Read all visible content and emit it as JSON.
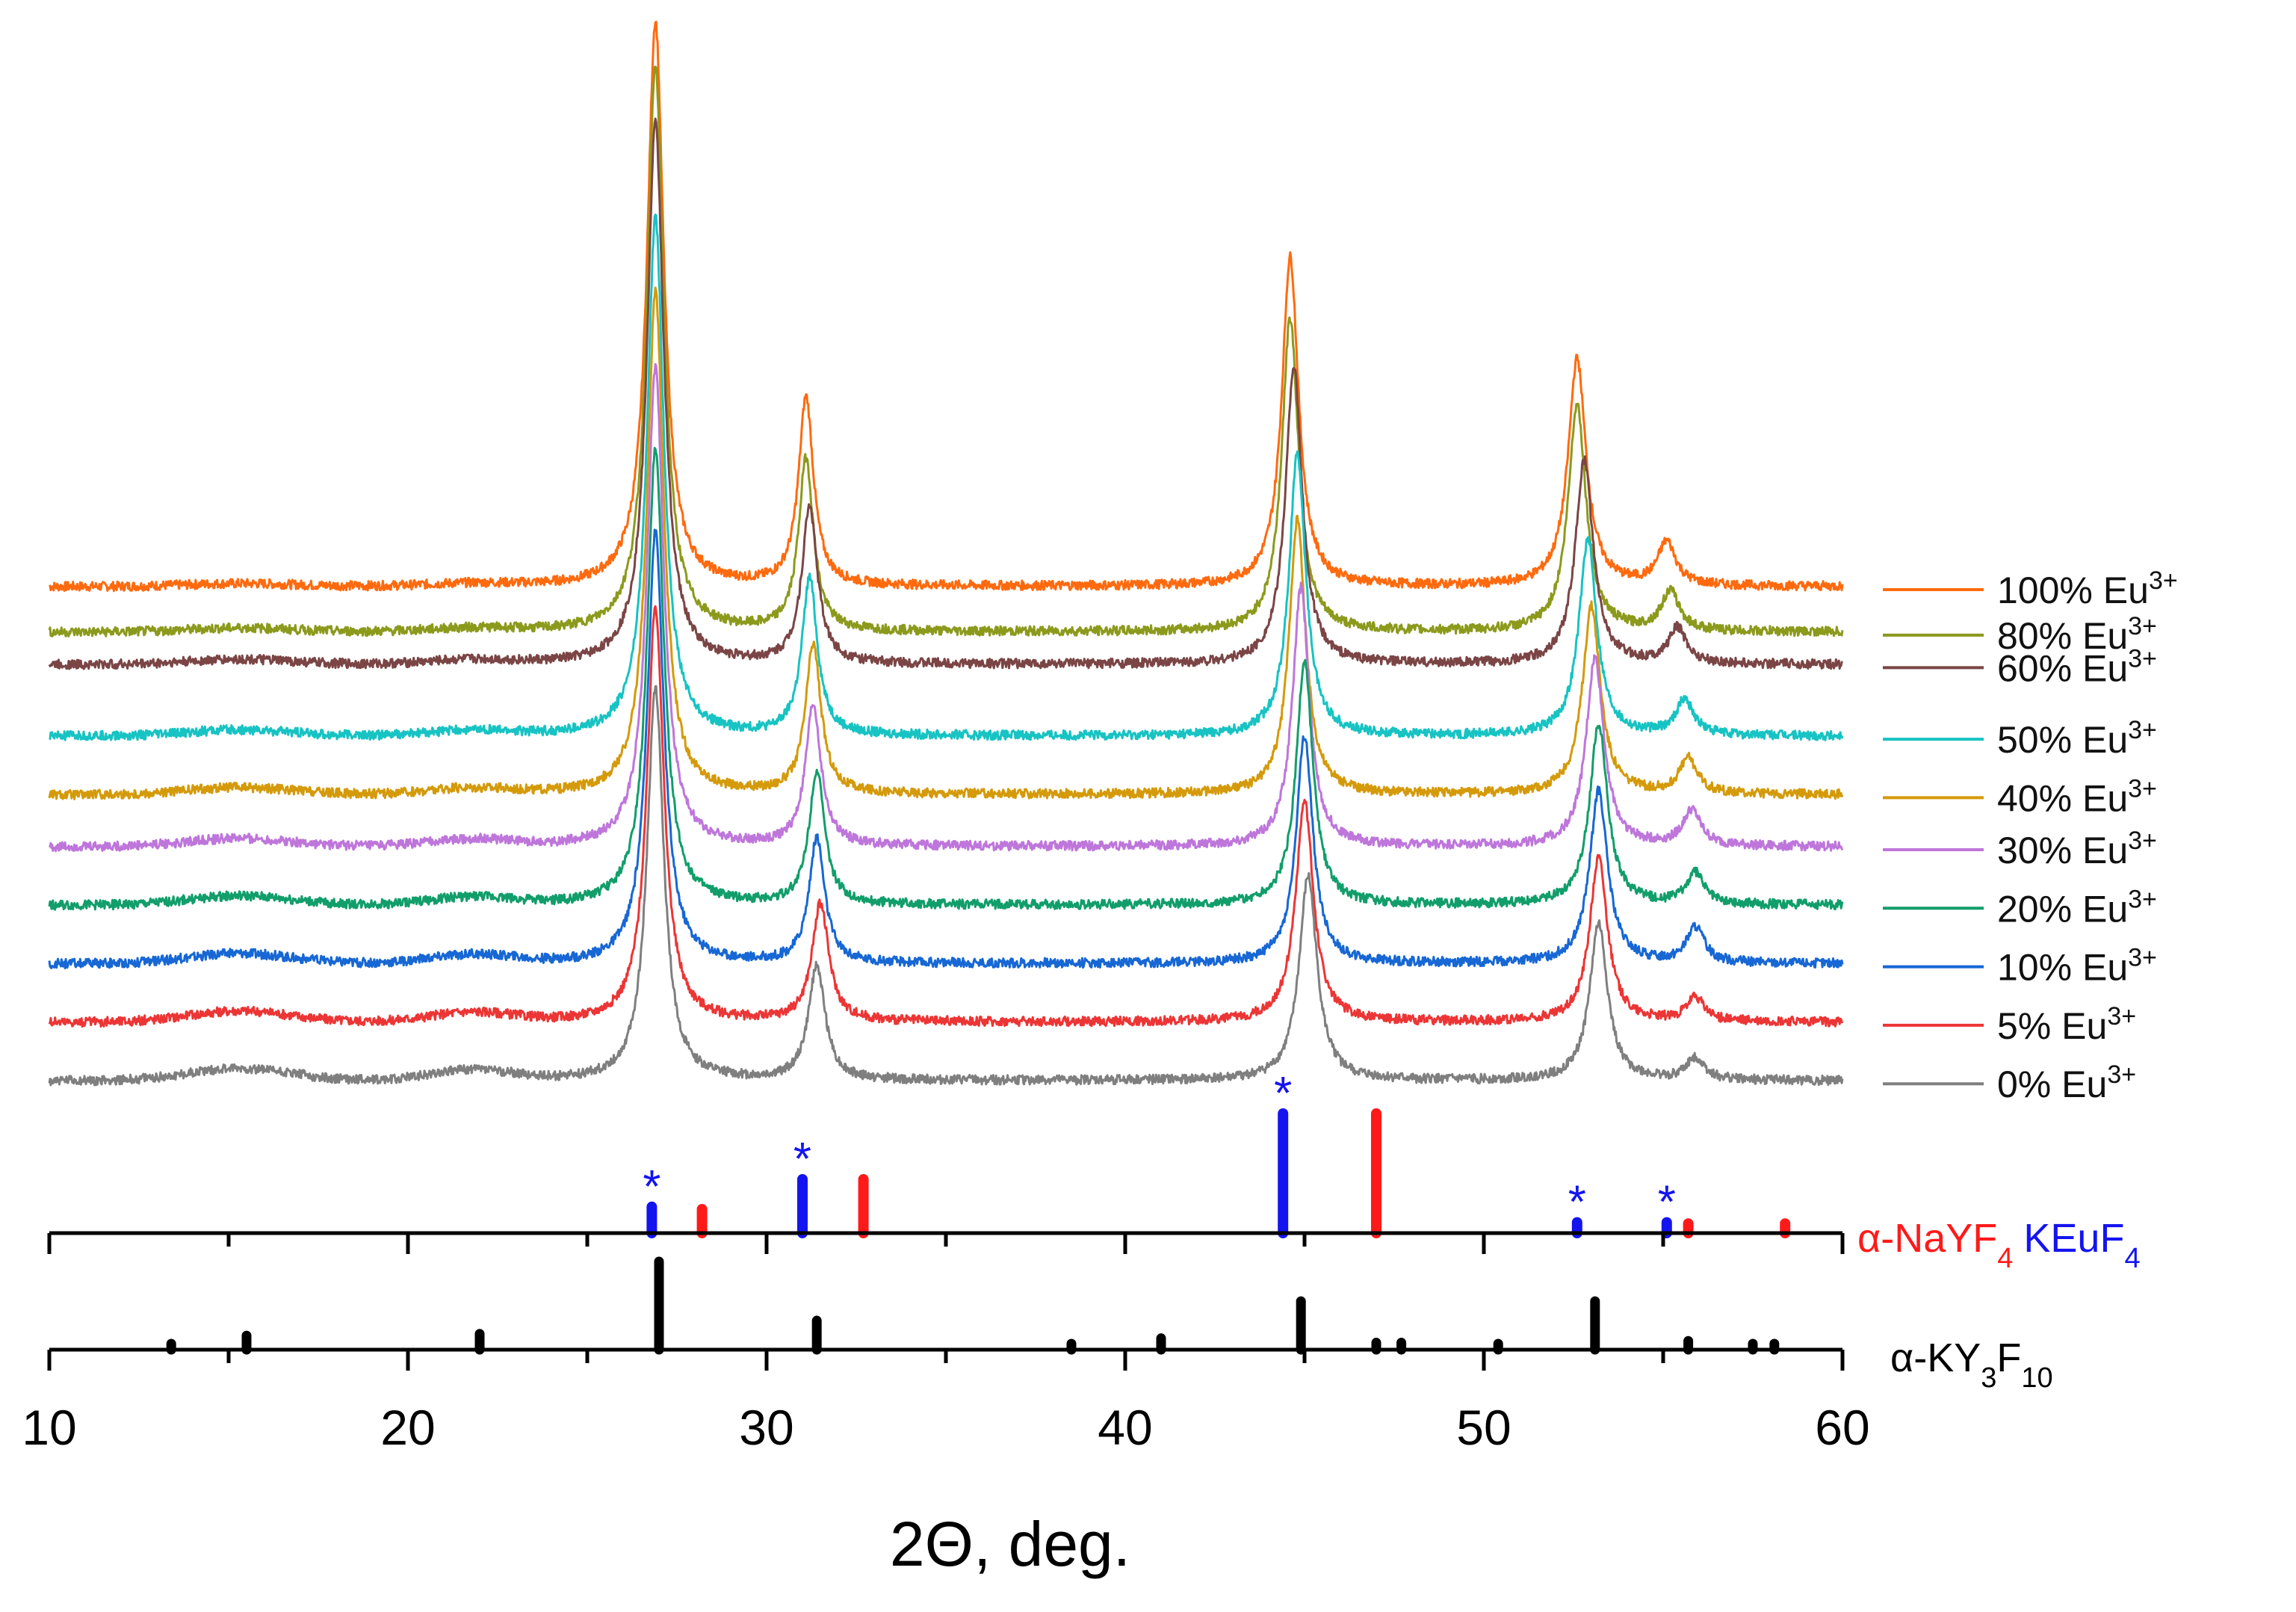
{
  "chart_data": {
    "type": "line",
    "title": "",
    "xlabel": "2Θ, deg.",
    "ylabel": "",
    "xlim": [
      10,
      60
    ],
    "x_ticks": [
      "10",
      "20",
      "30",
      "40",
      "50",
      "60"
    ],
    "grid": false,
    "legend_position": "right",
    "series": [
      {
        "name": "100% Eu",
        "sup": "3+",
        "color": "#FF6A0E",
        "baseline": 0.0,
        "peaks": [
          [
            26.9,
            7.2,
            0.28
          ],
          [
            31.1,
            2.4,
            0.25
          ],
          [
            44.6,
            4.2,
            0.28
          ],
          [
            52.6,
            2.9,
            0.3
          ],
          [
            55.1,
            0.55,
            0.3
          ]
        ]
      },
      {
        "name": "80% Eu",
        "sup": "3+",
        "color": "#8C9A1C",
        "baseline": 0.35,
        "peaks": [
          [
            26.9,
            7.2,
            0.28
          ],
          [
            31.1,
            2.2,
            0.25
          ],
          [
            44.6,
            4.0,
            0.28
          ],
          [
            52.6,
            2.9,
            0.3
          ],
          [
            55.2,
            0.5,
            0.3
          ]
        ]
      },
      {
        "name": "60% Eu",
        "sup": "3+",
        "color": "#7B4545",
        "baseline": 0.6,
        "peaks": [
          [
            26.9,
            6.9,
            0.28
          ],
          [
            31.2,
            2.0,
            0.26
          ],
          [
            44.7,
            3.8,
            0.28
          ],
          [
            52.8,
            2.6,
            0.3
          ],
          [
            55.4,
            0.45,
            0.3
          ]
        ]
      },
      {
        "name": "50% Eu",
        "sup": "3+",
        "color": "#17C3C3",
        "baseline": 1.15,
        "peaks": [
          [
            26.9,
            6.6,
            0.28
          ],
          [
            31.2,
            2.0,
            0.26
          ],
          [
            44.8,
            3.6,
            0.28
          ],
          [
            52.9,
            2.5,
            0.3
          ],
          [
            55.6,
            0.45,
            0.3
          ]
        ]
      },
      {
        "name": "40% Eu",
        "sup": "3+",
        "color": "#D49A0A",
        "baseline": 1.6,
        "peaks": [
          [
            26.9,
            6.4,
            0.28
          ],
          [
            31.3,
            1.9,
            0.26
          ],
          [
            44.8,
            3.5,
            0.28
          ],
          [
            53.0,
            2.4,
            0.3
          ],
          [
            55.7,
            0.45,
            0.3
          ]
        ]
      },
      {
        "name": "30% Eu",
        "sup": "3+",
        "color": "#BE76DB",
        "baseline": 2.0,
        "peaks": [
          [
            26.9,
            6.1,
            0.28
          ],
          [
            31.3,
            1.8,
            0.26
          ],
          [
            44.9,
            3.3,
            0.28
          ],
          [
            53.1,
            2.4,
            0.3
          ],
          [
            55.8,
            0.45,
            0.3
          ]
        ]
      },
      {
        "name": "20% Eu",
        "sup": "3+",
        "color": "#119E6A",
        "baseline": 2.45,
        "peaks": [
          [
            26.9,
            5.8,
            0.28
          ],
          [
            31.4,
            1.7,
            0.26
          ],
          [
            45.0,
            3.1,
            0.28
          ],
          [
            53.2,
            2.3,
            0.3
          ],
          [
            55.9,
            0.4,
            0.3
          ]
        ]
      },
      {
        "name": "10% Eu",
        "sup": "3+",
        "color": "#1767D4",
        "baseline": 2.9,
        "peaks": [
          [
            26.9,
            5.5,
            0.28
          ],
          [
            31.4,
            1.6,
            0.26
          ],
          [
            45.0,
            2.9,
            0.28
          ],
          [
            53.2,
            2.2,
            0.3
          ],
          [
            55.9,
            0.45,
            0.3
          ]
        ]
      },
      {
        "name": "5% Eu",
        "sup": "3+",
        "color": "#EC3535",
        "baseline": 3.35,
        "peaks": [
          [
            26.9,
            5.3,
            0.28
          ],
          [
            31.5,
            1.5,
            0.28
          ],
          [
            45.0,
            2.8,
            0.3
          ],
          [
            53.2,
            2.1,
            0.3
          ],
          [
            55.9,
            0.3,
            0.3
          ]
        ]
      },
      {
        "name": "0% Eu",
        "sup": "3+",
        "color": "#7F7F7F",
        "baseline": 3.8,
        "peaks": [
          [
            26.9,
            5.0,
            0.28
          ],
          [
            31.4,
            1.45,
            0.28
          ],
          [
            45.1,
            2.6,
            0.3
          ],
          [
            53.2,
            2.0,
            0.3
          ],
          [
            55.9,
            0.28,
            0.3
          ]
        ]
      }
    ],
    "reference_patterns": [
      {
        "name": "α-NaYF",
        "sub": "4",
        "color": "#FF1A1A",
        "panel": "upper",
        "sticks": [
          [
            28.2,
            0.2
          ],
          [
            32.7,
            0.45
          ],
          [
            47.0,
            1.0
          ],
          [
            55.7,
            0.08
          ],
          [
            58.4,
            0.08
          ]
        ]
      },
      {
        "name": "KEuF",
        "sub": "4",
        "color": "#1414F0",
        "panel": "upper",
        "marker": "*",
        "sticks": [
          [
            26.8,
            0.22
          ],
          [
            31.0,
            0.45
          ],
          [
            44.4,
            1.0
          ],
          [
            52.6,
            0.09
          ],
          [
            55.1,
            0.09
          ]
        ]
      },
      {
        "name": "α-KY",
        "sub": "3",
        "suffix": "F",
        "sub2": "10",
        "color": "#000000",
        "panel": "lower",
        "sticks": [
          [
            13.4,
            0.05
          ],
          [
            15.5,
            0.16
          ],
          [
            22.0,
            0.18
          ],
          [
            27.0,
            1.0
          ],
          [
            31.4,
            0.33
          ],
          [
            38.5,
            0.03
          ],
          [
            41.0,
            0.13
          ],
          [
            44.9,
            0.55
          ],
          [
            47.0,
            0.08
          ],
          [
            47.7,
            0.08
          ],
          [
            50.4,
            0.03
          ],
          [
            53.1,
            0.55
          ],
          [
            55.7,
            0.1
          ],
          [
            57.5,
            0.05
          ],
          [
            58.1,
            0.05
          ]
        ]
      }
    ]
  }
}
